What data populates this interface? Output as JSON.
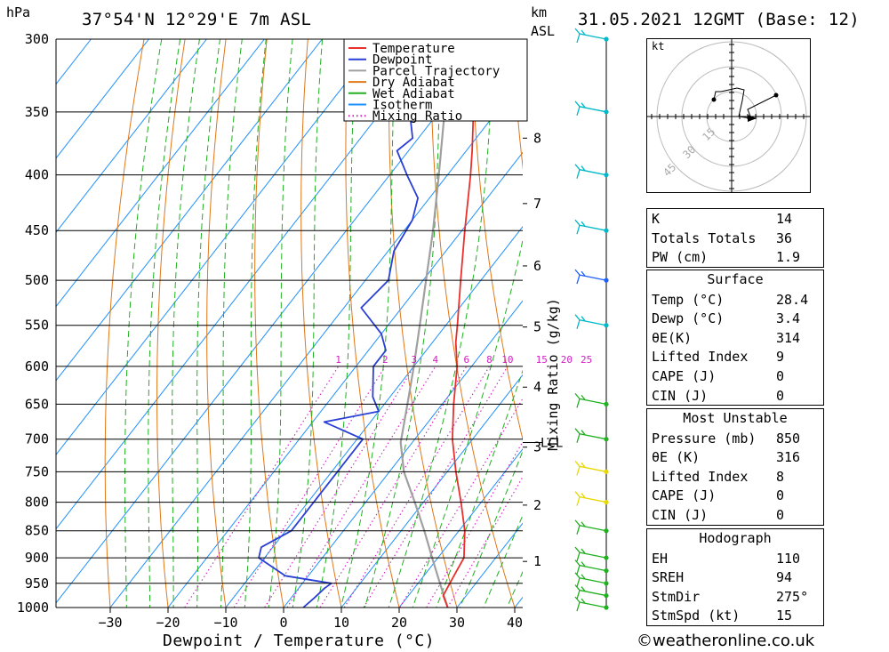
{
  "header": {
    "pressure_unit": "hPa",
    "location": "37°54'N 12°29'E 7m ASL",
    "km_label": "km",
    "asl_label": "ASL",
    "datetime": "31.05.2021 12GMT (Base: 12)"
  },
  "chart_data": {
    "type": "skew-t log-p",
    "xlabel": "Dewpoint / Temperature (°C)",
    "ylabel": "hPa",
    "right_axis_label": "Mixing Ratio (g/kg)",
    "x_ticks": [
      -30,
      -20,
      -10,
      0,
      10,
      20,
      30,
      40
    ],
    "pressure_levels": [
      300,
      350,
      400,
      450,
      500,
      550,
      600,
      650,
      700,
      750,
      800,
      850,
      900,
      950,
      1000
    ],
    "km_ticks": [
      {
        "km": "1",
        "p": 907
      },
      {
        "km": "2",
        "p": 805
      },
      {
        "km": "3",
        "p": 712
      },
      {
        "km": "4",
        "p": 627
      },
      {
        "km": "5",
        "p": 552
      },
      {
        "km": "6",
        "p": 485
      },
      {
        "km": "7",
        "p": 425
      },
      {
        "km": "8",
        "p": 370
      }
    ],
    "lcl": {
      "label": "LCL",
      "p": 705
    },
    "mixing_ratio_labels": [
      "1",
      "2",
      "3",
      "4",
      "6",
      "8",
      "10",
      "15",
      "20",
      "25"
    ],
    "mixing_ratio_values": [
      1,
      2,
      3,
      4,
      6,
      8,
      10,
      15,
      20,
      25
    ],
    "legend": {
      "position": "top-right",
      "entries": [
        {
          "name": "Temperature",
          "color": "#e8302c",
          "style": "solid"
        },
        {
          "name": "Dewpoint",
          "color": "#2a3fd6",
          "style": "solid"
        },
        {
          "name": "Parcel Trajectory",
          "color": "#a0a0a0",
          "style": "solid"
        },
        {
          "name": "Dry Adiabat",
          "color": "#e07818",
          "style": "solid"
        },
        {
          "name": "Wet Adiabat",
          "color": "#20b020",
          "style": "solid"
        },
        {
          "name": "Isotherm",
          "color": "#1e90ff",
          "style": "solid"
        },
        {
          "name": "Mixing Ratio",
          "color": "#d020c0",
          "style": "dotted"
        }
      ]
    },
    "temperature": [
      {
        "p": 1000,
        "t": 28.4
      },
      {
        "p": 975,
        "t": 26.0
      },
      {
        "p": 950,
        "t": 25.5
      },
      {
        "p": 925,
        "t": 25.0
      },
      {
        "p": 900,
        "t": 24.5
      },
      {
        "p": 850,
        "t": 21.0
      },
      {
        "p": 800,
        "t": 16.5
      },
      {
        "p": 750,
        "t": 11.5
      },
      {
        "p": 700,
        "t": 6.5
      },
      {
        "p": 650,
        "t": 2.0
      },
      {
        "p": 600,
        "t": -2.5
      },
      {
        "p": 570,
        "t": -6.0
      },
      {
        "p": 550,
        "t": -8.0
      },
      {
        "p": 500,
        "t": -13.5
      },
      {
        "p": 450,
        "t": -19.5
      },
      {
        "p": 400,
        "t": -26.0
      },
      {
        "p": 380,
        "t": -29.0
      },
      {
        "p": 350,
        "t": -34.0
      },
      {
        "p": 330,
        "t": -37.0
      },
      {
        "p": 300,
        "t": -42.0
      }
    ],
    "dewpoint": [
      {
        "p": 1000,
        "t": 3.4
      },
      {
        "p": 980,
        "t": 4.0
      },
      {
        "p": 960,
        "t": 4.5
      },
      {
        "p": 950,
        "t": 5.0
      },
      {
        "p": 935,
        "t": -4.0
      },
      {
        "p": 900,
        "t": -11.0
      },
      {
        "p": 880,
        "t": -12.0
      },
      {
        "p": 850,
        "t": -9.0
      },
      {
        "p": 800,
        "t": -9.0
      },
      {
        "p": 750,
        "t": -9.0
      },
      {
        "p": 700,
        "t": -9.0
      },
      {
        "p": 675,
        "t": -18.0
      },
      {
        "p": 660,
        "t": -10.0
      },
      {
        "p": 640,
        "t": -13.0
      },
      {
        "p": 600,
        "t": -17.0
      },
      {
        "p": 580,
        "t": -17.0
      },
      {
        "p": 560,
        "t": -20.0
      },
      {
        "p": 530,
        "t": -27.0
      },
      {
        "p": 500,
        "t": -26.0
      },
      {
        "p": 470,
        "t": -29.0
      },
      {
        "p": 440,
        "t": -30.0
      },
      {
        "p": 420,
        "t": -32.0
      },
      {
        "p": 400,
        "t": -37.0
      },
      {
        "p": 380,
        "t": -42.0
      },
      {
        "p": 370,
        "t": -41.0
      },
      {
        "p": 355,
        "t": -44.0
      },
      {
        "p": 345,
        "t": -41.0
      },
      {
        "p": 335,
        "t": -47.0
      },
      {
        "p": 325,
        "t": -48.0
      },
      {
        "p": 300,
        "t": -50.0
      }
    ],
    "parcel": [
      {
        "p": 1000,
        "t": 28.4
      },
      {
        "p": 950,
        "t": 23.8
      },
      {
        "p": 900,
        "t": 19.0
      },
      {
        "p": 850,
        "t": 14.0
      },
      {
        "p": 800,
        "t": 8.5
      },
      {
        "p": 750,
        "t": 2.5
      },
      {
        "p": 705,
        "t": -2.0
      },
      {
        "p": 650,
        "t": -6.0
      },
      {
        "p": 600,
        "t": -10.0
      },
      {
        "p": 550,
        "t": -14.5
      },
      {
        "p": 500,
        "t": -19.5
      },
      {
        "p": 450,
        "t": -25.0
      },
      {
        "p": 400,
        "t": -31.5
      },
      {
        "p": 350,
        "t": -39.0
      },
      {
        "p": 300,
        "t": -47.5
      }
    ],
    "wind_barbs": [
      {
        "p": 1000,
        "color": "#20b020"
      },
      {
        "p": 975,
        "color": "#20b020"
      },
      {
        "p": 950,
        "color": "#20b020"
      },
      {
        "p": 925,
        "color": "#20b020"
      },
      {
        "p": 900,
        "color": "#20b020"
      },
      {
        "p": 850,
        "color": "#20b020"
      },
      {
        "p": 800,
        "color": "#e8d800"
      },
      {
        "p": 750,
        "color": "#e8d800"
      },
      {
        "p": 700,
        "color": "#20b020"
      },
      {
        "p": 650,
        "color": "#20b020"
      },
      {
        "p": 550,
        "color": "#00b8c8"
      },
      {
        "p": 500,
        "color": "#1e60ff"
      },
      {
        "p": 450,
        "color": "#00b8c8"
      },
      {
        "p": 400,
        "color": "#00b8c8"
      },
      {
        "p": 350,
        "color": "#00b8c8"
      },
      {
        "p": 300,
        "color": "#00b8c8"
      }
    ]
  },
  "hodograph": {
    "unit_label": "kt",
    "ring_labels": [
      "15",
      "30",
      "45"
    ]
  },
  "indices": [
    {
      "label": "K",
      "value": "14"
    },
    {
      "label": "Totals Totals",
      "value": "36"
    },
    {
      "label": "PW (cm)",
      "value": "1.9"
    }
  ],
  "surface": {
    "title": "Surface",
    "rows": [
      {
        "label": "Temp (°C)",
        "value": "28.4"
      },
      {
        "label": "Dewp (°C)",
        "value": "3.4"
      },
      {
        "label": "θE(K)",
        "value": "314"
      },
      {
        "label": "Lifted Index",
        "value": "9"
      },
      {
        "label": "CAPE (J)",
        "value": "0"
      },
      {
        "label": "CIN (J)",
        "value": "0"
      }
    ]
  },
  "most_unstable": {
    "title": "Most Unstable",
    "rows": [
      {
        "label": "Pressure (mb)",
        "value": "850"
      },
      {
        "label": "θE (K)",
        "value": "316"
      },
      {
        "label": "Lifted Index",
        "value": "8"
      },
      {
        "label": "CAPE (J)",
        "value": "0"
      },
      {
        "label": "CIN (J)",
        "value": "0"
      }
    ]
  },
  "hodograph_stats": {
    "title": "Hodograph",
    "rows": [
      {
        "label": "EH",
        "value": "110"
      },
      {
        "label": "SREH",
        "value": "94"
      },
      {
        "label": "StmDir",
        "value": "275°"
      },
      {
        "label": "StmSpd (kt)",
        "value": "15"
      }
    ]
  },
  "footer": {
    "copyright": "©weatheronline.co.uk"
  }
}
